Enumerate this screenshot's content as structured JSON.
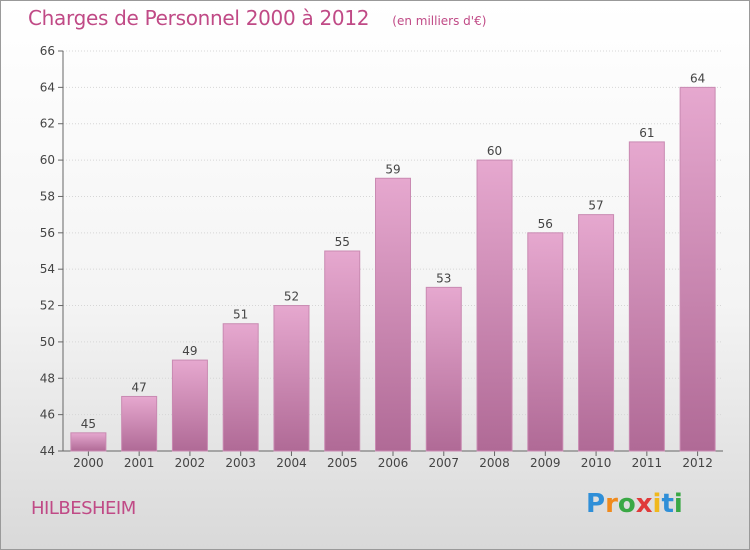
{
  "header": {
    "title": "Charges de Personnel 2000 à 2012",
    "subtitle": "(en milliers d'€)"
  },
  "footer": {
    "place": "HILBESHEIM",
    "logo": {
      "letters": [
        "P",
        "r",
        "o",
        "x",
        "i",
        "t",
        "i"
      ],
      "colors": [
        "#2f8fd8",
        "#f08a1c",
        "#3aa845",
        "#e03a3a",
        "#f0b81c",
        "#2f8fd8",
        "#3aa845"
      ]
    }
  },
  "colors": {
    "accent": "#c04a86",
    "bar_top": "#e6a8cf",
    "bar_bottom": "#b06a96"
  },
  "chart_data": {
    "type": "bar",
    "categories": [
      "2000",
      "2001",
      "2002",
      "2003",
      "2004",
      "2005",
      "2006",
      "2007",
      "2008",
      "2009",
      "2010",
      "2011",
      "2012"
    ],
    "values": [
      45,
      47,
      49,
      51,
      52,
      55,
      59,
      53,
      60,
      56,
      57,
      61,
      64
    ],
    "title": "Charges de Personnel 2000 à 2012",
    "subtitle": "(en milliers d'€)",
    "xlabel": "",
    "ylabel": "",
    "ylim": [
      44,
      66
    ],
    "yticks": [
      44,
      46,
      48,
      50,
      52,
      54,
      56,
      58,
      60,
      62,
      64,
      66
    ],
    "grid": true
  }
}
